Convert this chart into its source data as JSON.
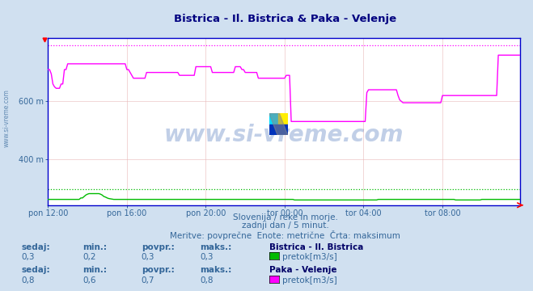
{
  "title": "Bistrica - Il. Bistrica & Paka - Velenje",
  "title_color": "#000080",
  "bg_color": "#d0e0f0",
  "plot_bg_color": "#ffffff",
  "xlabel_ticks": [
    "pon 12:00",
    "pon 16:00",
    "pon 20:00",
    "tor 00:00",
    "tor 04:00",
    "tor 08:00"
  ],
  "ylabel_values": [
    600,
    400
  ],
  "ymin": 240,
  "ymax": 820,
  "subtitle_lines": [
    "Slovenija / reke in morje.",
    "zadnji dan / 5 minut.",
    "Meritve: povprečne  Enote: metrične  Črta: maksimum"
  ],
  "legend1_title": "Bistrica - Il. Bistrica",
  "legend1_color": "#00bb00",
  "legend1_label": "pretok[m3/s]",
  "legend2_title": "Paka - Velenje",
  "legend2_color": "#ff00ff",
  "legend2_label": "pretok[m3/s]",
  "watermark": "www.si-vreme.com",
  "row1_labels": [
    "sedaj:",
    "min.:",
    "povpr.:",
    "maks.:"
  ],
  "row1_values": [
    "0,3",
    "0,2",
    "0,3",
    "0,3"
  ],
  "row2_labels": [
    "sedaj:",
    "min.:",
    "povpr.:",
    "maks.:"
  ],
  "row2_values": [
    "0,8",
    "0,6",
    "0,7",
    "0,8"
  ],
  "n_points": 288,
  "tick_color": "#336699",
  "text_color": "#336699",
  "axis_color": "#0000cc",
  "grid_color": "#e8b8b8",
  "green_max": 295,
  "magenta_max": 795,
  "magenta_data": [
    710,
    710,
    695,
    660,
    650,
    645,
    645,
    645,
    660,
    660,
    710,
    710,
    730,
    730,
    730,
    730,
    730,
    730,
    730,
    730,
    730,
    730,
    730,
    730,
    730,
    730,
    730,
    730,
    730,
    730,
    730,
    730,
    730,
    730,
    730,
    730,
    730,
    730,
    730,
    730,
    730,
    730,
    730,
    730,
    730,
    730,
    730,
    730,
    710,
    710,
    700,
    690,
    680,
    680,
    680,
    680,
    680,
    680,
    680,
    680,
    700,
    700,
    700,
    700,
    700,
    700,
    700,
    700,
    700,
    700,
    700,
    700,
    700,
    700,
    700,
    700,
    700,
    700,
    700,
    700,
    690,
    690,
    690,
    690,
    690,
    690,
    690,
    690,
    690,
    690,
    720,
    720,
    720,
    720,
    720,
    720,
    720,
    720,
    720,
    720,
    700,
    700,
    700,
    700,
    700,
    700,
    700,
    700,
    700,
    700,
    700,
    700,
    700,
    700,
    720,
    720,
    720,
    720,
    710,
    710,
    700,
    700,
    700,
    700,
    700,
    700,
    700,
    700,
    680,
    680,
    680,
    680,
    680,
    680,
    680,
    680,
    680,
    680,
    680,
    680,
    680,
    680,
    680,
    680,
    680,
    690,
    690,
    690,
    530,
    530,
    530,
    530,
    530,
    530,
    530,
    530,
    530,
    530,
    530,
    530,
    530,
    530,
    530,
    530,
    530,
    530,
    530,
    530,
    530,
    530,
    530,
    530,
    530,
    530,
    530,
    530,
    530,
    530,
    530,
    530,
    530,
    530,
    530,
    530,
    530,
    530,
    530,
    530,
    530,
    530,
    530,
    530,
    530,
    530,
    630,
    640,
    640,
    640,
    640,
    640,
    640,
    640,
    640,
    640,
    640,
    640,
    640,
    640,
    640,
    640,
    640,
    640,
    640,
    620,
    605,
    600,
    595,
    595,
    595,
    595,
    595,
    595,
    595,
    595,
    595,
    595,
    595,
    595,
    595,
    595,
    595,
    595,
    595,
    595,
    595,
    595,
    595,
    595,
    595,
    595,
    620,
    620,
    620,
    620,
    620,
    620,
    620,
    620,
    620,
    620,
    620,
    620,
    620,
    620,
    620,
    620,
    620,
    620,
    620,
    620,
    620,
    620,
    620,
    620,
    620,
    620,
    620,
    620,
    620,
    620,
    620,
    620,
    620,
    620,
    760,
    760,
    760,
    760,
    760,
    760,
    760,
    760,
    760,
    760,
    760,
    760,
    760,
    760
  ],
  "green_data": [
    260,
    260,
    260,
    260,
    260,
    260,
    260,
    260,
    260,
    260,
    260,
    260,
    260,
    260,
    260,
    260,
    260,
    260,
    260,
    260,
    265,
    265,
    270,
    275,
    278,
    280,
    280,
    280,
    280,
    280,
    280,
    280,
    278,
    275,
    270,
    268,
    265,
    263,
    262,
    261,
    260,
    260,
    260,
    260,
    260,
    260,
    260,
    260,
    260,
    260,
    260,
    260,
    260,
    260,
    260,
    260,
    260,
    260,
    260,
    260,
    260,
    260,
    260,
    260,
    260,
    260,
    260,
    260,
    260,
    260,
    260,
    260,
    260,
    260,
    260,
    260,
    260,
    260,
    260,
    260,
    260,
    260,
    260,
    260,
    260,
    260,
    260,
    260,
    260,
    260,
    260,
    260,
    260,
    260,
    260,
    260,
    260,
    260,
    260,
    260,
    260,
    260,
    260,
    260,
    260,
    260,
    260,
    260,
    260,
    260,
    260,
    260,
    260,
    260,
    260,
    260,
    260,
    260,
    260,
    260,
    260,
    260,
    260,
    260,
    260,
    260,
    260,
    260,
    260,
    260,
    260,
    260,
    260,
    260,
    260,
    260,
    260,
    260,
    260,
    260,
    260,
    260,
    260,
    260,
    260,
    260,
    260,
    260,
    260,
    260,
    258,
    258,
    258,
    258,
    258,
    258,
    258,
    258,
    258,
    258,
    258,
    258,
    258,
    258,
    258,
    258,
    258,
    258,
    258,
    258,
    258,
    258,
    258,
    258,
    258,
    258,
    258,
    258,
    258,
    258,
    258,
    258,
    258,
    258,
    258,
    258,
    258,
    258,
    258,
    258,
    258,
    258,
    258,
    258,
    258,
    258,
    258,
    258,
    258,
    258,
    258,
    260,
    260,
    260,
    260,
    260,
    260,
    260,
    260,
    260,
    260,
    260,
    260,
    260,
    260,
    260,
    260,
    260,
    260,
    260,
    260,
    260,
    260,
    260,
    260,
    260,
    260,
    260,
    260,
    260,
    260,
    260,
    260,
    260,
    260,
    260,
    260,
    260,
    260,
    260,
    260,
    260,
    260,
    260,
    260,
    260,
    260,
    260,
    258,
    258,
    258,
    258,
    258,
    258,
    258,
    258,
    258,
    258,
    258,
    258,
    258,
    258,
    258,
    258,
    260,
    260,
    260,
    260,
    260,
    260,
    260,
    260,
    260,
    260,
    260,
    260,
    260,
    260,
    260,
    260,
    260,
    260,
    260,
    260,
    260,
    260,
    260,
    260
  ]
}
